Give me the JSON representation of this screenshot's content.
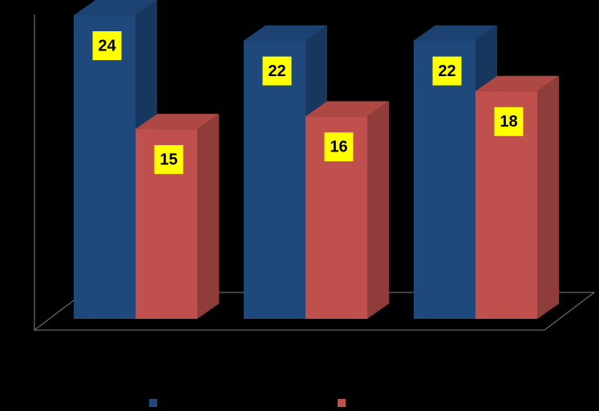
{
  "chart_data": {
    "type": "bar3d",
    "categories": [
      null,
      null,
      null
    ],
    "series": [
      {
        "color": "#1f497d",
        "values": [
          24,
          22,
          22
        ]
      },
      {
        "color": "#c0504d",
        "values": [
          15,
          16,
          18
        ]
      }
    ]
  }
}
